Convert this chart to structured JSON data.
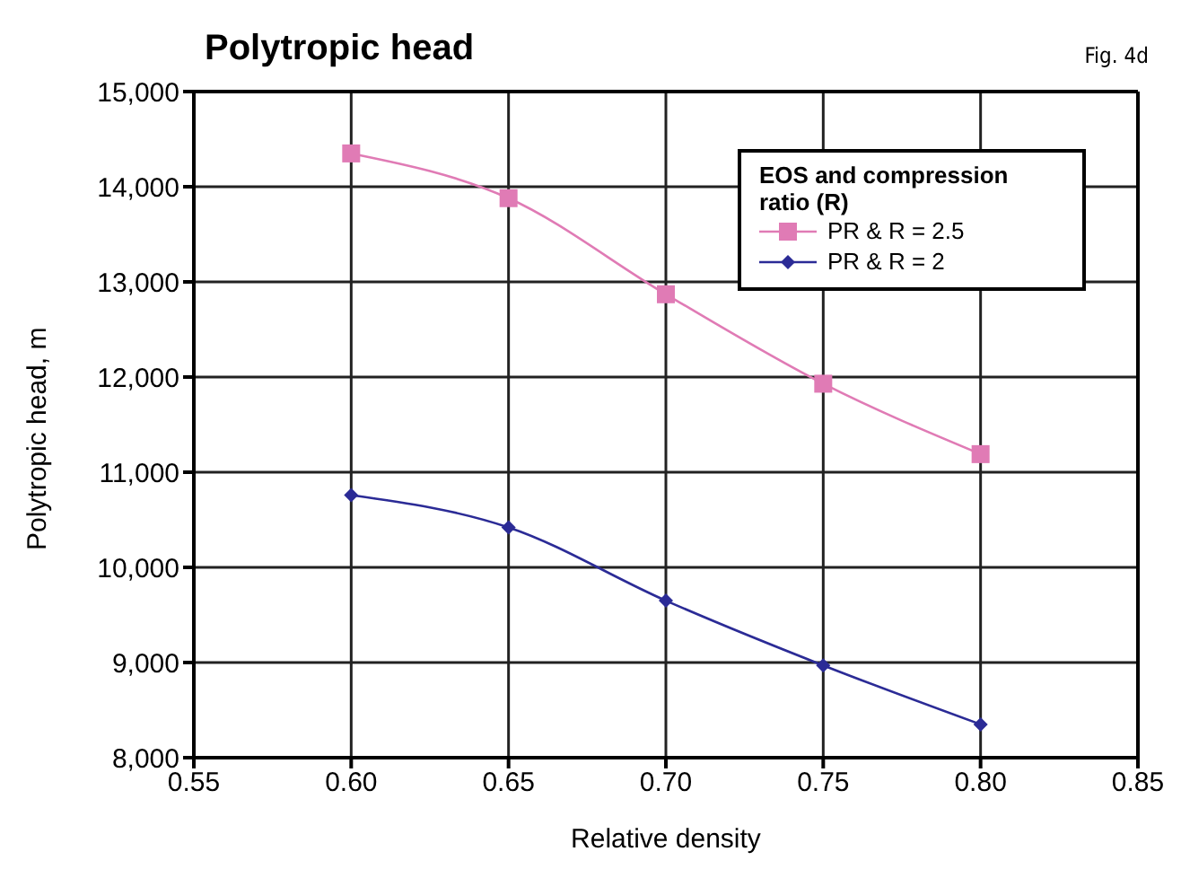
{
  "chart_data": {
    "type": "line",
    "title": "Polytropic head",
    "annotations": [
      "Fig. 4d"
    ],
    "xlabel": "Relative density",
    "ylabel": "Polytropic head, m",
    "legend_title": "EOS and compression ratio (R)",
    "legend": "top right",
    "grid": true,
    "x": [
      0.6,
      0.65,
      0.7,
      0.75,
      0.8
    ],
    "xlim": [
      0.55,
      0.85
    ],
    "xticks": [
      {
        "value": 0.55,
        "label": "0.55"
      },
      {
        "value": 0.6,
        "label": "0.60"
      },
      {
        "value": 0.65,
        "label": "0.65"
      },
      {
        "value": 0.7,
        "label": "0.70"
      },
      {
        "value": 0.75,
        "label": "0.75"
      },
      {
        "value": 0.8,
        "label": "0.80"
      },
      {
        "value": 0.85,
        "label": "0.85"
      }
    ],
    "ylim": [
      8000,
      15000
    ],
    "yticks": [
      {
        "value": 8000,
        "label": "8,000"
      },
      {
        "value": 9000,
        "label": "9,000"
      },
      {
        "value": 10000,
        "label": "10,000"
      },
      {
        "value": 11000,
        "label": "11,000"
      },
      {
        "value": 12000,
        "label": "12,000"
      },
      {
        "value": 13000,
        "label": "13,000"
      },
      {
        "value": 14000,
        "label": "14,000"
      },
      {
        "value": 15000,
        "label": "15,000"
      }
    ],
    "series": [
      {
        "name": "PR & R = 2.5",
        "color": "#e07bb5",
        "marker": "square",
        "values": [
          14350,
          13880,
          12870,
          11930,
          11190
        ]
      },
      {
        "name": "PR & R = 2",
        "color": "#2b2b96",
        "marker": "diamond",
        "values": [
          10760,
          10420,
          9650,
          8970,
          8350
        ]
      }
    ]
  }
}
